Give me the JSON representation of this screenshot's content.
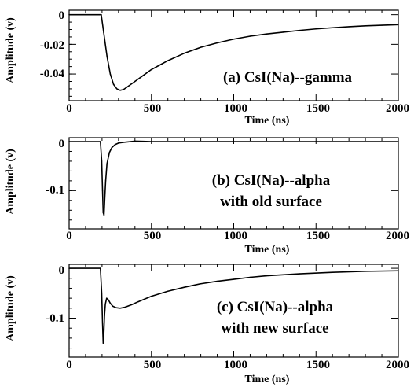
{
  "chart_data": [
    {
      "type": "line",
      "xlabel": "Time (ns)",
      "ylabel": "Amplitude (v)",
      "annotation": [
        "(a) CsI(Na)--gamma"
      ],
      "xlim": [
        0,
        2000
      ],
      "ylim": [
        -0.058,
        0.003
      ],
      "xticks": [
        0,
        500,
        1000,
        1500,
        2000
      ],
      "xtick_labels": [
        "0",
        "500",
        "1000",
        "1500",
        "2000"
      ],
      "yticks": [
        0,
        -0.02,
        -0.04
      ],
      "ytick_labels": [
        "0",
        "-0.02",
        "-0.04"
      ],
      "grid": false,
      "series": [
        {
          "x": [
            0,
            150,
            195,
            210,
            230,
            250,
            270,
            290,
            310,
            330,
            350,
            400,
            450,
            500,
            550,
            600,
            700,
            800,
            900,
            1000,
            1100,
            1200,
            1300,
            1400,
            1500,
            1600,
            1700,
            1800,
            1900,
            2000
          ],
          "y": [
            0,
            0,
            0,
            -0.012,
            -0.028,
            -0.04,
            -0.047,
            -0.05,
            -0.051,
            -0.0505,
            -0.049,
            -0.045,
            -0.041,
            -0.037,
            -0.034,
            -0.031,
            -0.026,
            -0.022,
            -0.019,
            -0.0165,
            -0.0145,
            -0.013,
            -0.0118,
            -0.0106,
            -0.0096,
            -0.0088,
            -0.0081,
            -0.0075,
            -0.0071,
            -0.0067
          ]
        }
      ]
    },
    {
      "type": "line",
      "xlabel": "Time (ns)",
      "ylabel": "Amplitude (v)",
      "annotation": [
        "(b) CsI(Na)--alpha",
        "with old surface"
      ],
      "xlim": [
        0,
        2000
      ],
      "ylim": [
        -0.178,
        0.008
      ],
      "xticks": [
        0,
        500,
        1000,
        1500,
        2000
      ],
      "xtick_labels": [
        "0",
        "500",
        "1000",
        "1500",
        "2000"
      ],
      "yticks": [
        0,
        -0.1
      ],
      "ytick_labels": [
        "0",
        "-0.1"
      ],
      "grid": false,
      "series": [
        {
          "x": [
            0,
            190,
            198,
            203,
            207,
            212,
            216,
            222,
            230,
            245,
            260,
            280,
            300,
            330,
            360,
            400,
            450,
            500,
            1000,
            1500,
            2000
          ],
          "y": [
            0,
            0,
            -0.04,
            -0.1,
            -0.145,
            -0.15,
            -0.12,
            -0.08,
            -0.045,
            -0.022,
            -0.012,
            -0.006,
            -0.003,
            -0.0015,
            -0.0005,
            0.001,
            0.0005,
            0,
            0,
            0,
            0
          ]
        }
      ]
    },
    {
      "type": "line",
      "xlabel": "Time (ns)",
      "ylabel": "Amplitude (v)",
      "annotation": [
        "(c) CsI(Na)--alpha",
        "with new surface"
      ],
      "xlim": [
        0,
        2000
      ],
      "ylim": [
        -0.178,
        0.008
      ],
      "xticks": [
        0,
        500,
        1000,
        1500,
        2000
      ],
      "xtick_labels": [
        "0",
        "500",
        "1000",
        "1500",
        "2000"
      ],
      "yticks": [
        0,
        -0.1
      ],
      "ytick_labels": [
        "0",
        "-0.1"
      ],
      "grid": false,
      "series": [
        {
          "x": [
            0,
            190,
            198,
            203,
            207,
            211,
            215,
            220,
            228,
            238,
            250,
            265,
            285,
            310,
            340,
            380,
            420,
            500,
            600,
            700,
            800,
            900,
            1000,
            1100,
            1200,
            1400,
            1600,
            1800,
            2000
          ],
          "y": [
            0,
            0,
            -0.05,
            -0.11,
            -0.15,
            -0.13,
            -0.095,
            -0.072,
            -0.06,
            -0.063,
            -0.07,
            -0.076,
            -0.079,
            -0.08,
            -0.078,
            -0.073,
            -0.067,
            -0.056,
            -0.046,
            -0.038,
            -0.031,
            -0.026,
            -0.022,
            -0.018,
            -0.015,
            -0.011,
            -0.008,
            -0.006,
            -0.005
          ]
        }
      ]
    }
  ]
}
